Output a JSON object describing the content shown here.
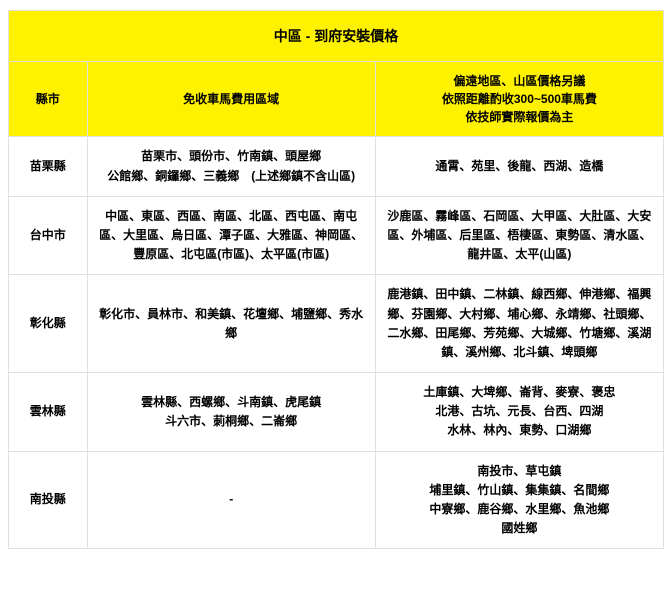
{
  "title": "中區 - 到府安裝價格",
  "columns": {
    "county": "縣市",
    "free_area": "免收車馬費用區域",
    "remote_area_line1": "偏遠地區、山區價格另議",
    "remote_area_line2": "依照距離酌收300~500車馬費",
    "remote_area_line3": "依技師實際報價為主"
  },
  "rows": [
    {
      "county": "苗栗縣",
      "free_line1": "苗栗市、頭份市、竹南鎮、頭屋鄉",
      "free_line2": "公館鄉、銅鑼鄉、三義鄉　(上述鄉鎮不含山區)",
      "remote": "通霄、苑里、後龍、西湖、造橋"
    },
    {
      "county": "台中市",
      "free_line1": "中區、東區、西區、南區、北區、西屯區、南屯區、大里區、烏日區、潭子區、大雅區、神岡區、豐原區、北屯區(市區)、太平區(市區)",
      "remote": "沙鹿區、霧峰區、石岡區、大甲區、大肚區、大安區、外埔區、后里區、梧棲區、東勢區、清水區、龍井區、太平(山區)"
    },
    {
      "county": "彰化縣",
      "free_line1": "彰化市、員林市、和美鎮、花壇鄉、埔鹽鄉、秀水鄉",
      "remote": "鹿港鎮、田中鎮、二林鎮、線西鄉、伸港鄉、福興鄉、芬園鄉、大村鄉、埔心鄉、永靖鄉、社頭鄉、二水鄉、田尾鄉、芳苑鄉、大城鄉、竹塘鄉、溪湖鎮、溪州鄉、北斗鎮、埤頭鄉"
    },
    {
      "county": "雲林縣",
      "free_line1": "雲林縣、西螺鄉、斗南鎮、虎尾鎮",
      "free_line2": "斗六市、莿桐鄉、二崙鄉",
      "remote_line1": "土庫鎮、大埤鄉、崙背、麥寮、褒忠",
      "remote_line2": "北港、古坑、元長、台西、四湖",
      "remote_line3": "水林、林內、東勢、口湖鄉"
    },
    {
      "county": "南投縣",
      "free_line1": "-",
      "remote_line1": "南投市、草屯鎮",
      "remote_line2": "埔里鎮、竹山鎮、集集鎮、名間鄉",
      "remote_line3": "中寮鄉、鹿谷鄉、水里鄉、魚池鄉",
      "remote_line4": "國姓鄉"
    }
  ],
  "styling": {
    "header_bg": "#fff200",
    "border_color": "#e0e0e0",
    "text_color": "#000000",
    "font_size_title": 14,
    "font_size_body": 12
  }
}
